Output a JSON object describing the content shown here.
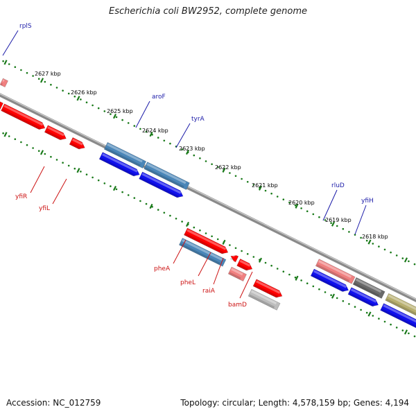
{
  "title": "Escherichia coli BW2952, complete genome",
  "footer": {
    "accession": "Accession: NC_012759",
    "summary": "Topology: circular; Length: 4,578,159 bp; Genes: 4,194"
  },
  "colors": {
    "backbone": "#8c8c8c",
    "tick_green": "#1a7a1a",
    "forward_label": "#1a1aa8",
    "reverse_label": "#cc1111",
    "gene_red": "#ff0000",
    "gene_pink": "#f08080",
    "gene_blue": "#1010ee",
    "gene_steel": "#4a86b8",
    "gene_gray": "#bdbdbd",
    "gene_dark": "#6a6a6a",
    "gene_olive": "#b8b070"
  },
  "ticks": [
    "2627 kbp",
    "2626 kbp",
    "2625 kbp",
    "2624 kbp",
    "2623 kbp",
    "2622 kbp",
    "2621 kbp",
    "2620 kbp",
    "2619 kbp",
    "2618 kbp"
  ],
  "labels": {
    "forward": [
      "rplS",
      "aroF",
      "tyrA",
      "rluD",
      "yfiH"
    ],
    "reverse": [
      "yfiR",
      "yfiL",
      "pheA",
      "pheL",
      "raiA",
      "bamD"
    ]
  }
}
